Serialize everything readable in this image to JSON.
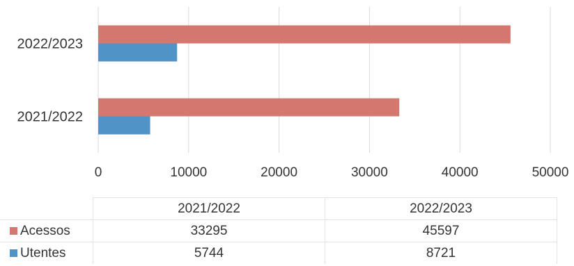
{
  "chart_data": {
    "type": "bar",
    "orientation": "horizontal",
    "categories": [
      "2021/2022",
      "2022/2023"
    ],
    "series": [
      {
        "name": "Acessos",
        "values": [
          33295,
          45597
        ],
        "color": "#d4776f"
      },
      {
        "name": "Utentes",
        "values": [
          5744,
          8721
        ],
        "color": "#4f93c7"
      }
    ],
    "xlim": [
      0,
      50000
    ],
    "x_ticks": [
      "0",
      "10000",
      "20000",
      "30000",
      "40000",
      "50000"
    ],
    "grid": true,
    "legend": "data-table-below",
    "table": {
      "columns": [
        "2021/2022",
        "2022/2023"
      ],
      "rows": [
        {
          "name": "Acessos",
          "cells": [
            "33295",
            "45597"
          ]
        },
        {
          "name": "Utentes",
          "cells": [
            "5744",
            "8721"
          ]
        }
      ]
    }
  }
}
